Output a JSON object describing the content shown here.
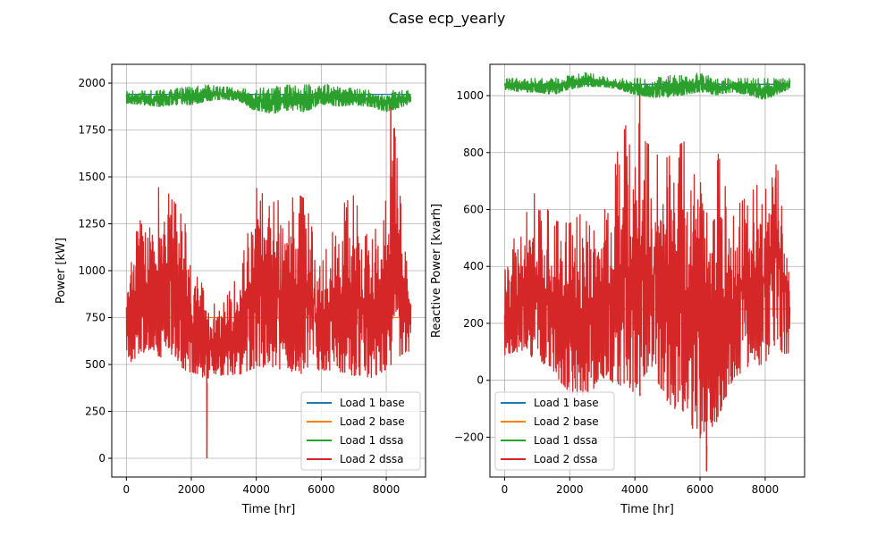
{
  "figure": {
    "title": "Case ecp_yearly"
  },
  "chart_data": [
    {
      "type": "line",
      "xlabel": "Time [hr]",
      "ylabel": "Power [kW]",
      "xlim": [
        -450,
        9210
      ],
      "ylim": [
        -100,
        2100
      ],
      "xticks": [
        0,
        2000,
        4000,
        6000,
        8000
      ],
      "xtick_labels": [
        "0",
        "2000",
        "4000",
        "6000",
        "8000"
      ],
      "yticks": [
        0,
        250,
        500,
        750,
        1000,
        1250,
        1500,
        1750,
        2000
      ],
      "ytick_labels": [
        "0",
        "250",
        "500",
        "750",
        "1000",
        "1250",
        "1500",
        "1750",
        "2000"
      ],
      "grid": true,
      "legend_position": "lower-right",
      "x_range": [
        0,
        8760
      ],
      "series": [
        {
          "name": "Load 1 base",
          "color": "#1f77b4",
          "envelope": {
            "x": [
              0,
              8760
            ],
            "min": [
              1940,
              1940
            ],
            "max": [
              1940,
              1940
            ]
          }
        },
        {
          "name": "Load 2 base",
          "color": "#ff7f0e",
          "envelope": {
            "x": [
              0,
              8760
            ],
            "min": [
              750,
              750
            ],
            "max": [
              750,
              750
            ]
          }
        },
        {
          "name": "Load 1 dssa",
          "color": "#2ca02c",
          "envelope": {
            "x": [
              0,
              500,
              1000,
              1500,
              2000,
              2500,
              3000,
              3500,
              4000,
              4500,
              5000,
              5500,
              6000,
              6500,
              7000,
              7500,
              8000,
              8500,
              8760
            ],
            "min": [
              1890,
              1880,
              1870,
              1880,
              1880,
              1900,
              1910,
              1900,
              1840,
              1830,
              1850,
              1840,
              1880,
              1870,
              1880,
              1870,
              1840,
              1870,
              1890
            ],
            "max": [
              1960,
              1960,
              1960,
              1970,
              1980,
              1990,
              1980,
              1970,
              1970,
              1980,
              1990,
              1990,
              2000,
              1980,
              1970,
              1960,
              1960,
              1960,
              1960
            ]
          }
        },
        {
          "name": "Load 2 dssa",
          "color": "#d62728",
          "envelope": {
            "x": [
              0,
              200,
              500,
              800,
              1000,
              1200,
              1500,
              1800,
              2000,
              2200,
              2500,
              2800,
              3000,
              3500,
              4000,
              4500,
              5000,
              5500,
              6000,
              6500,
              7000,
              7500,
              8000,
              8200,
              8500,
              8760
            ],
            "min": [
              460,
              490,
              520,
              540,
              460,
              520,
              500,
              420,
              430,
              410,
              400,
              420,
              420,
              420,
              430,
              440,
              410,
              400,
              440,
              420,
              390,
              390,
              420,
              530,
              480,
              560
            ],
            "max": [
              1000,
              1200,
              1320,
              1250,
              1450,
              1530,
              1360,
              1260,
              1040,
              1000,
              830,
              820,
              830,
              1000,
              1440,
              1360,
              1440,
              1380,
              1020,
              1330,
              1400,
              1140,
              1380,
              1870,
              1250,
              900
            ]
          },
          "spikes": [
            {
              "x": 2480,
              "y": 0
            },
            {
              "x": 8140,
              "y": 1870
            }
          ]
        }
      ]
    },
    {
      "type": "line",
      "xlabel": "Time [hr]",
      "ylabel": "Reactive Power [kvarh]",
      "xlim": [
        -450,
        9210
      ],
      "ylim": [
        -340,
        1110
      ],
      "xticks": [
        0,
        2000,
        4000,
        6000,
        8000
      ],
      "xtick_labels": [
        "0",
        "2000",
        "4000",
        "6000",
        "8000"
      ],
      "yticks": [
        -200,
        0,
        200,
        400,
        600,
        800,
        1000
      ],
      "ytick_labels": [
        "−200",
        "0",
        "200",
        "400",
        "600",
        "800",
        "1000"
      ],
      "grid": true,
      "legend_position": "lower-left",
      "x_range": [
        0,
        8760
      ],
      "series": [
        {
          "name": "Load 1 base",
          "color": "#1f77b4",
          "envelope": {
            "x": [
              0,
              8760
            ],
            "min": [
              1040,
              1040
            ],
            "max": [
              1040,
              1040
            ]
          }
        },
        {
          "name": "Load 2 base",
          "color": "#ff7f0e",
          "envelope": {
            "x": [
              0,
              8760
            ],
            "min": [
              250,
              250
            ],
            "max": [
              250,
              250
            ]
          }
        },
        {
          "name": "Load 1 dssa",
          "color": "#2ca02c",
          "envelope": {
            "x": [
              0,
              500,
              1000,
              1500,
              2000,
              2500,
              3000,
              3500,
              4000,
              4500,
              5000,
              5500,
              6000,
              6500,
              7000,
              7500,
              8000,
              8500,
              8760
            ],
            "min": [
              1020,
              1010,
              1010,
              1000,
              1020,
              1030,
              1030,
              1020,
              1000,
              990,
              990,
              1000,
              1010,
              1000,
              1010,
              1000,
              980,
              1010,
              1020
            ],
            "max": [
              1060,
              1060,
              1060,
              1060,
              1070,
              1080,
              1070,
              1060,
              1060,
              1060,
              1070,
              1070,
              1080,
              1060,
              1060,
              1060,
              1060,
              1060,
              1060
            ]
          }
        },
        {
          "name": "Load 2 dssa",
          "color": "#d62728",
          "envelope": {
            "x": [
              0,
              300,
              600,
              1000,
              1500,
              2000,
              2500,
              3000,
              3500,
              4000,
              4200,
              4500,
              5000,
              5500,
              6000,
              6500,
              7000,
              7500,
              8000,
              8300,
              8500,
              8760
            ],
            "min": [
              60,
              80,
              60,
              40,
              0,
              -80,
              -100,
              -20,
              -60,
              -100,
              -40,
              0,
              -120,
              -180,
              -250,
              -200,
              -30,
              20,
              20,
              80,
              60,
              80
            ],
            "max": [
              380,
              500,
              600,
              670,
              560,
              550,
              600,
              560,
              820,
              990,
              850,
              820,
              780,
              840,
              690,
              820,
              600,
              650,
              720,
              890,
              700,
              400
            ]
          },
          "spikes": [
            {
              "x": 6200,
              "y": -320
            },
            {
              "x": 4150,
              "y": 1000
            }
          ]
        }
      ]
    }
  ]
}
